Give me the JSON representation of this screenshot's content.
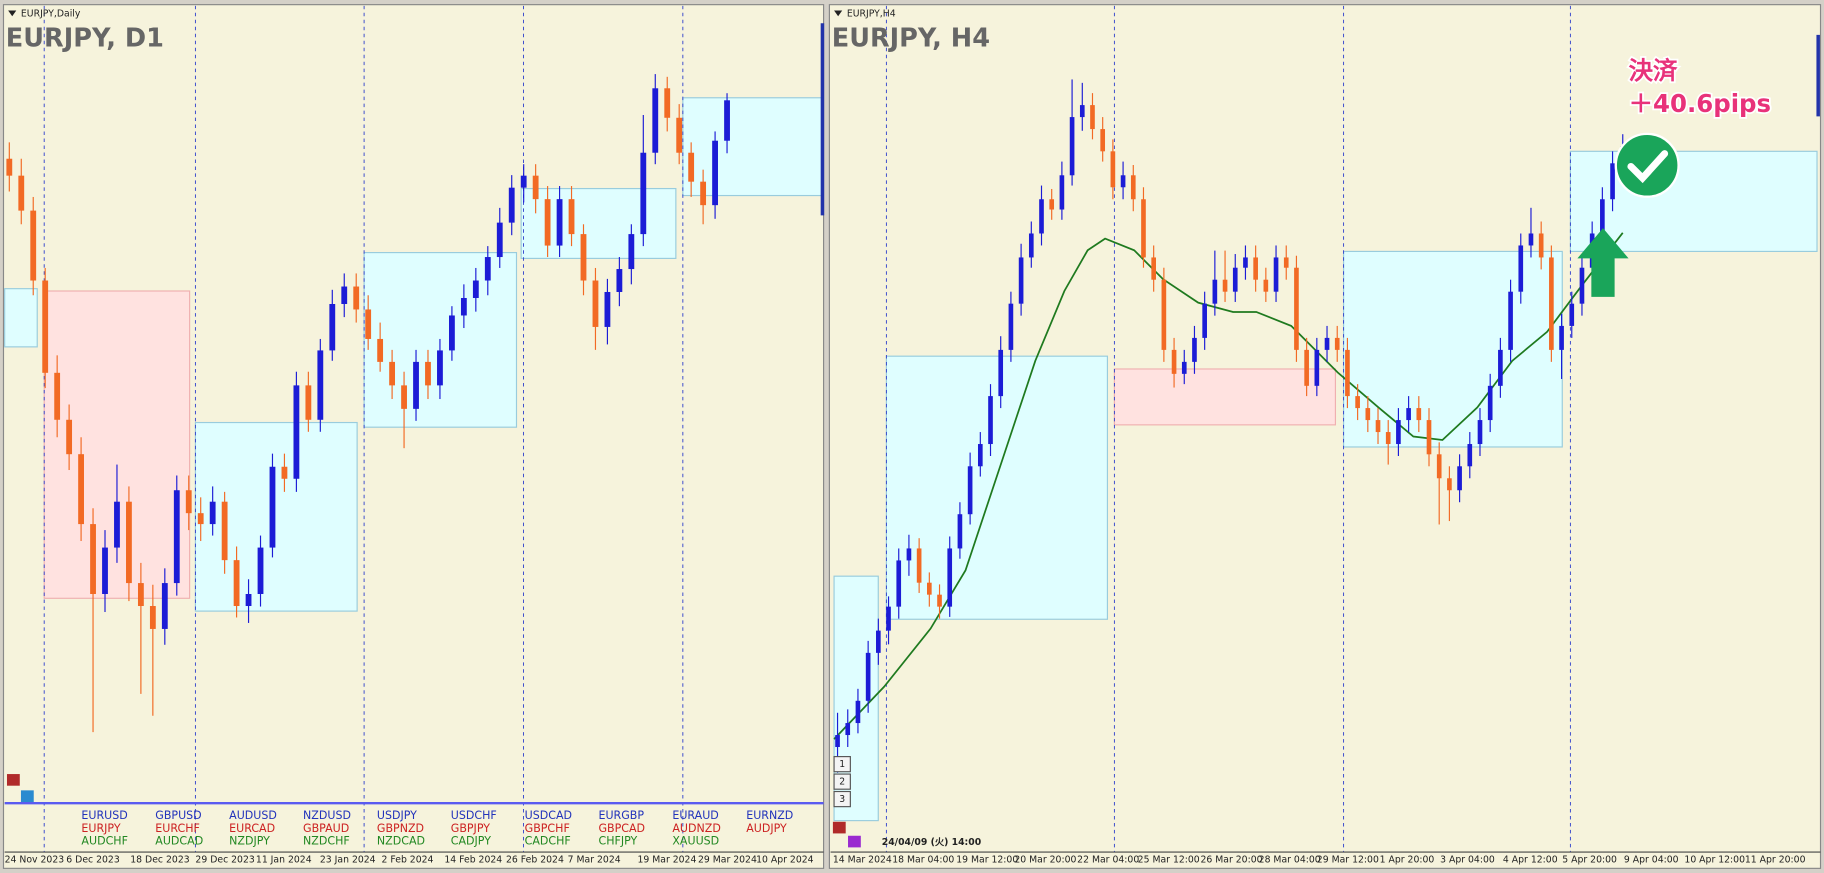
{
  "panels": [
    {
      "small_title": "EURJPY,Daily",
      "title": "EURJPY, D1",
      "ylim": [
        152,
        166.6
      ],
      "candles": [
        [
          163.8,
          164.1,
          163.2,
          163.49
        ],
        [
          163.49,
          163.8,
          162.6,
          162.85
        ],
        [
          162.85,
          163.1,
          161.3,
          161.57
        ],
        [
          161.57,
          161.8,
          159.6,
          159.88
        ],
        [
          159.88,
          160.2,
          158.7,
          159.02
        ],
        [
          159.02,
          159.3,
          158.1,
          158.39
        ],
        [
          158.39,
          158.7,
          156.8,
          157.11
        ],
        [
          157.11,
          157.4,
          153.3,
          155.83
        ],
        [
          155.83,
          157.0,
          155.5,
          156.68
        ],
        [
          156.68,
          158.2,
          156.4,
          157.52
        ],
        [
          157.52,
          157.8,
          155.7,
          156.03
        ],
        [
          156.03,
          156.4,
          154.0,
          155.61
        ],
        [
          155.61,
          156.0,
          153.6,
          155.19
        ],
        [
          155.19,
          156.3,
          154.9,
          156.03
        ],
        [
          156.03,
          158.0,
          155.8,
          157.73
        ],
        [
          157.73,
          158.0,
          157.0,
          157.31
        ],
        [
          157.31,
          157.6,
          156.8,
          157.11
        ],
        [
          157.11,
          157.8,
          156.9,
          157.52
        ],
        [
          157.52,
          157.7,
          156.2,
          156.45
        ],
        [
          156.45,
          156.7,
          155.4,
          155.61
        ],
        [
          155.61,
          156.1,
          155.3,
          155.83
        ],
        [
          155.83,
          156.9,
          155.6,
          156.68
        ],
        [
          156.68,
          158.4,
          156.5,
          158.16
        ],
        [
          158.16,
          158.4,
          157.7,
          157.94
        ],
        [
          157.94,
          159.9,
          157.7,
          159.65
        ],
        [
          159.65,
          159.9,
          158.8,
          159.02
        ],
        [
          159.02,
          160.5,
          158.8,
          160.29
        ],
        [
          160.29,
          161.4,
          160.1,
          161.14
        ],
        [
          161.14,
          161.7,
          160.9,
          161.46
        ],
        [
          161.46,
          161.7,
          160.8,
          161.04
        ],
        [
          161.04,
          161.3,
          160.3,
          160.5
        ],
        [
          160.5,
          160.8,
          159.9,
          160.08
        ],
        [
          160.08,
          160.3,
          159.4,
          159.65
        ],
        [
          159.65,
          159.9,
          158.5,
          159.22
        ],
        [
          159.22,
          160.3,
          159.0,
          160.08
        ],
        [
          160.08,
          160.3,
          159.4,
          159.65
        ],
        [
          159.65,
          160.5,
          159.4,
          160.29
        ],
        [
          160.29,
          161.1,
          160.1,
          160.93
        ],
        [
          160.93,
          161.5,
          160.7,
          161.25
        ],
        [
          161.25,
          161.8,
          161.0,
          161.57
        ],
        [
          161.57,
          162.2,
          161.3,
          162.0
        ],
        [
          162.0,
          162.9,
          161.8,
          162.63
        ],
        [
          162.63,
          163.5,
          162.4,
          163.27
        ],
        [
          163.27,
          163.7,
          163.0,
          163.49
        ],
        [
          163.49,
          163.7,
          162.8,
          163.06
        ],
        [
          163.06,
          163.3,
          162.0,
          162.21
        ],
        [
          162.21,
          163.3,
          162.0,
          163.06
        ],
        [
          163.06,
          163.3,
          162.2,
          162.42
        ],
        [
          162.42,
          162.6,
          161.3,
          161.57
        ],
        [
          161.57,
          161.8,
          160.3,
          160.72
        ],
        [
          160.72,
          161.6,
          160.4,
          161.36
        ],
        [
          161.36,
          162.0,
          161.1,
          161.78
        ],
        [
          161.78,
          162.6,
          161.5,
          162.42
        ],
        [
          162.42,
          164.6,
          162.2,
          163.91
        ],
        [
          163.91,
          165.35,
          163.7,
          165.09
        ],
        [
          165.09,
          165.3,
          164.3,
          164.55
        ],
        [
          164.55,
          164.8,
          163.7,
          163.91
        ],
        [
          163.91,
          164.1,
          163.1,
          163.38
        ],
        [
          163.38,
          163.6,
          162.6,
          162.95
        ],
        [
          162.95,
          164.3,
          162.7,
          164.13
        ],
        [
          164.13,
          165.0,
          163.9,
          164.87
        ]
      ],
      "dates": [
        "24 Nov 2023",
        "6 Dec 2023",
        "18 Dec 2023",
        "29 Dec 2023",
        "11 Jan 2024",
        "23 Jan 2024",
        "2 Feb 2024",
        "14 Feb 2024",
        "26 Feb 2024",
        "7 Mar 2024",
        "19 Mar 2024",
        "29 Mar 2024",
        "10 Apr 2024"
      ]
    },
    {
      "small_title": "EURJPY,H4",
      "title": "EURJPY, H4",
      "ylim": [
        160.8,
        165.73
      ],
      "candles": [
        [
          161.4,
          161.6,
          161.25,
          161.47
        ],
        [
          161.47,
          161.62,
          161.4,
          161.54
        ],
        [
          161.54,
          161.74,
          161.48,
          161.67
        ],
        [
          161.67,
          162.02,
          161.6,
          161.95
        ],
        [
          161.95,
          162.15,
          161.88,
          162.08
        ],
        [
          162.08,
          162.28,
          162.0,
          162.22
        ],
        [
          162.22,
          162.56,
          162.15,
          162.49
        ],
        [
          162.49,
          162.64,
          162.4,
          162.56
        ],
        [
          162.56,
          162.62,
          162.3,
          162.36
        ],
        [
          162.36,
          162.42,
          162.22,
          162.29
        ],
        [
          162.29,
          162.35,
          162.15,
          162.22
        ],
        [
          162.22,
          162.63,
          162.16,
          162.56
        ],
        [
          162.56,
          162.83,
          162.5,
          162.76
        ],
        [
          162.76,
          163.12,
          162.7,
          163.04
        ],
        [
          163.04,
          163.24,
          162.98,
          163.17
        ],
        [
          163.17,
          163.52,
          163.1,
          163.45
        ],
        [
          163.45,
          163.8,
          163.38,
          163.72
        ],
        [
          163.72,
          164.06,
          163.65,
          163.99
        ],
        [
          163.99,
          164.34,
          163.92,
          164.26
        ],
        [
          164.26,
          164.47,
          164.2,
          164.4
        ],
        [
          164.4,
          164.68,
          164.33,
          164.6
        ],
        [
          164.6,
          164.66,
          164.48,
          164.54
        ],
        [
          164.54,
          164.82,
          164.48,
          164.74
        ],
        [
          164.74,
          165.3,
          164.68,
          165.08
        ],
        [
          165.08,
          165.28,
          165.0,
          165.15
        ],
        [
          165.15,
          165.22,
          164.95,
          165.01
        ],
        [
          165.01,
          165.08,
          164.82,
          164.88
        ],
        [
          164.88,
          164.95,
          164.6,
          164.67
        ],
        [
          164.67,
          164.82,
          164.6,
          164.74
        ],
        [
          164.74,
          164.8,
          164.53,
          164.6
        ],
        [
          164.6,
          164.67,
          164.2,
          164.26
        ],
        [
          164.26,
          164.33,
          164.06,
          164.13
        ],
        [
          164.13,
          164.2,
          163.65,
          163.72
        ],
        [
          163.72,
          163.79,
          163.5,
          163.58
        ],
        [
          163.58,
          163.72,
          163.52,
          163.65
        ],
        [
          163.65,
          163.86,
          163.58,
          163.79
        ],
        [
          163.79,
          164.06,
          163.72,
          163.99
        ],
        [
          163.99,
          164.3,
          163.92,
          164.13
        ],
        [
          164.13,
          164.3,
          164.0,
          164.06
        ],
        [
          164.06,
          164.28,
          164.0,
          164.2
        ],
        [
          164.2,
          164.33,
          164.13,
          164.26
        ],
        [
          164.26,
          164.33,
          164.06,
          164.13
        ],
        [
          164.13,
          164.2,
          164.0,
          164.06
        ],
        [
          164.06,
          164.33,
          164.0,
          164.26
        ],
        [
          164.26,
          164.33,
          164.13,
          164.2
        ],
        [
          164.2,
          164.27,
          163.65,
          163.72
        ],
        [
          163.72,
          163.79,
          163.45,
          163.51
        ],
        [
          163.51,
          163.79,
          163.45,
          163.72
        ],
        [
          163.72,
          163.86,
          163.65,
          163.79
        ],
        [
          163.79,
          163.86,
          163.65,
          163.72
        ],
        [
          163.72,
          163.79,
          163.38,
          163.45
        ],
        [
          163.45,
          163.52,
          163.31,
          163.38
        ],
        [
          163.38,
          163.45,
          163.24,
          163.31
        ],
        [
          163.31,
          163.38,
          163.17,
          163.24
        ],
        [
          163.24,
          163.31,
          163.05,
          163.17
        ],
        [
          163.17,
          163.38,
          163.1,
          163.31
        ],
        [
          163.31,
          163.45,
          163.24,
          163.38
        ],
        [
          163.38,
          163.45,
          163.24,
          163.31
        ],
        [
          163.31,
          163.38,
          163.04,
          163.11
        ],
        [
          163.11,
          163.18,
          162.7,
          162.97
        ],
        [
          162.97,
          163.04,
          162.72,
          162.9
        ],
        [
          162.9,
          163.11,
          162.83,
          163.04
        ],
        [
          163.04,
          163.24,
          162.97,
          163.17
        ],
        [
          163.17,
          163.38,
          163.1,
          163.31
        ],
        [
          163.31,
          163.58,
          163.24,
          163.51
        ],
        [
          163.51,
          163.79,
          163.44,
          163.72
        ],
        [
          163.72,
          164.13,
          163.65,
          164.06
        ],
        [
          164.06,
          164.4,
          163.99,
          164.33
        ],
        [
          164.33,
          164.55,
          164.26,
          164.4
        ],
        [
          164.4,
          164.47,
          164.19,
          164.26
        ],
        [
          164.26,
          164.33,
          163.65,
          163.72
        ],
        [
          163.72,
          163.93,
          163.55,
          163.86
        ],
        [
          163.86,
          164.06,
          163.79,
          163.99
        ],
        [
          163.99,
          164.27,
          163.92,
          164.2
        ],
        [
          164.2,
          164.47,
          164.13,
          164.4
        ],
        [
          164.4,
          164.67,
          164.33,
          164.6
        ],
        [
          164.6,
          164.88,
          164.53,
          164.81
        ],
        [
          164.81,
          164.98,
          164.74,
          164.91
        ]
      ],
      "dates": [
        "14 Mar 2024",
        "18 Mar 04:00",
        "19 Mar 12:00",
        "20 Mar 20:00",
        "22 Mar 04:00",
        "25 Mar 12:00",
        "26 Mar 20:00",
        "28 Mar 04:00",
        "29 Mar 12:00",
        "1 Apr 20:00",
        "3 Apr 04:00",
        "4 Apr 12:00",
        "5 Apr 20:00",
        "9 Apr 04:00",
        "10 Apr 12:00",
        "11 Apr 20:00"
      ],
      "timestamp": "24/04/09 (火) 14:00",
      "buttons": [
        "1",
        "2",
        "3"
      ],
      "annotation": {
        "line1": "決済",
        "line2": "＋40.6pips"
      }
    }
  ],
  "symbols": [
    [
      "EURUSD",
      "EURJPY",
      "AUDCHF"
    ],
    [
      "GBPUSD",
      "EURCHF",
      "AUDCAD"
    ],
    [
      "AUDUSD",
      "EURCAD",
      "NZDJPY"
    ],
    [
      "NZDUSD",
      "GBPAUD",
      "NZDCHF"
    ],
    [
      "USDJPY",
      "GBPNZD",
      "NZDCAD"
    ],
    [
      "USDCHF",
      "GBPJPY",
      "CADJPY"
    ],
    [
      "USDCAD",
      "GBPCHF",
      "CADCHF"
    ],
    [
      "EURGBP",
      "GBPCAD",
      "CHFJPY"
    ],
    [
      "EURAUD",
      "AUDNZD",
      "XAUUSD"
    ],
    [
      "EURNZD",
      "AUDJPY"
    ]
  ]
}
